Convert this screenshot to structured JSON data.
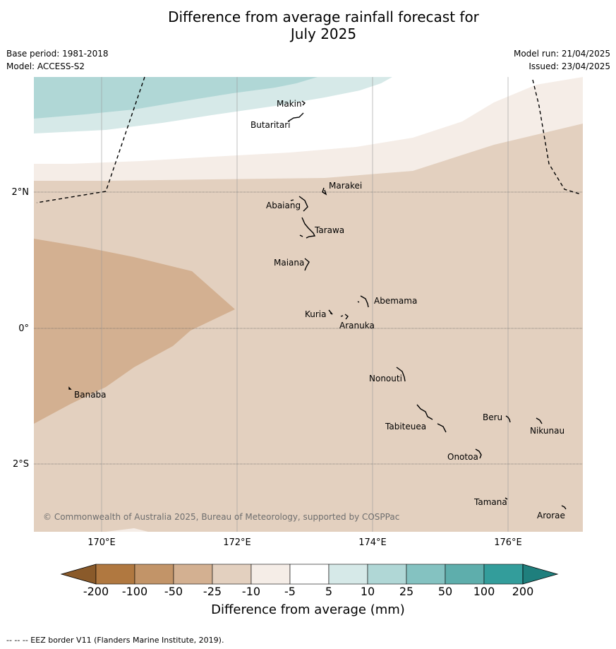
{
  "title_line1": "Difference from average rainfall forecast for",
  "title_line2": "July 2025",
  "base_period": "Base period: 1981-2018",
  "model": "Model: ACCESS-S2",
  "model_run": "Model run: 21/04/2025",
  "issued": "Issued: 23/04/2025",
  "copyright": "© Commonwealth of Australia 2025, Bureau of Meteorology, supported by COSPPac",
  "lon_ticks": [
    "170°E",
    "172°E",
    "174°E",
    "176°E"
  ],
  "lat_ticks": [
    "2°N",
    "0°",
    "2°S"
  ],
  "islands": {
    "makin": "Makin",
    "butaritari": "Butaritari",
    "marakei": "Marakei",
    "abaiang": "Abaiang",
    "tarawa": "Tarawa",
    "maiana": "Maiana",
    "abemama": "Abemama",
    "kuria": "Kuria",
    "aranuka": "Aranuka",
    "banaba": "Banaba",
    "nonouti": "Nonouti",
    "beru": "Beru",
    "nikunau": "Nikunau",
    "tabiteuea": "Tabiteuea",
    "onotoa": "Onotoa",
    "tamana": "Tamana",
    "arorae": "Arorae"
  },
  "colorbar": {
    "labels": [
      "-200",
      "-100",
      "-50",
      "-25",
      "-10",
      "-5",
      "5",
      "10",
      "25",
      "50",
      "100",
      "200"
    ],
    "colors": [
      "#8a5a2a",
      "#b07840",
      "#c29468",
      "#d3b091",
      "#e3d0bf",
      "#f5ede7",
      "#ffffff",
      "#d6e9e8",
      "#b0d7d6",
      "#84c2c1",
      "#5eaeac",
      "#339d9b",
      "#1f7f7d"
    ],
    "title": "Difference from average (mm)"
  },
  "footnote": "-- -- -- EEZ border V11 (Flanders Marine Institute, 2019)."
}
